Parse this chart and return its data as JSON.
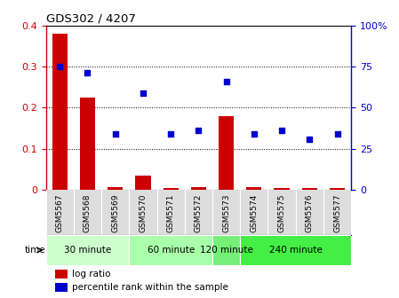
{
  "title": "GDS302 / 4207",
  "samples": [
    "GSM5567",
    "GSM5568",
    "GSM5569",
    "GSM5570",
    "GSM5571",
    "GSM5572",
    "GSM5573",
    "GSM5574",
    "GSM5575",
    "GSM5576",
    "GSM5577"
  ],
  "log_ratio": [
    0.38,
    0.225,
    0.008,
    0.035,
    0.005,
    0.008,
    0.18,
    0.008,
    0.006,
    0.006,
    0.005
  ],
  "percentile_right": [
    75,
    71,
    34,
    59,
    34,
    36,
    66,
    34,
    36,
    31,
    34
  ],
  "bar_color": "#cc0000",
  "dot_color": "#0000cc",
  "ylim_left": [
    0,
    0.4
  ],
  "ylim_right": [
    0,
    100
  ],
  "yticks_left": [
    0,
    0.1,
    0.2,
    0.3,
    0.4
  ],
  "yticks_right": [
    0,
    25,
    50,
    75,
    100
  ],
  "ytick_labels_left": [
    "0",
    "0.1",
    "0.2",
    "0.3",
    "0.4"
  ],
  "ytick_labels_right": [
    "0",
    "25",
    "50",
    "75",
    "100%"
  ],
  "groups": [
    {
      "label": "30 minute",
      "start": 0,
      "end": 3,
      "color": "#ccffcc"
    },
    {
      "label": "60 minute",
      "start": 3,
      "end": 6,
      "color": "#aaffaa"
    },
    {
      "label": "120 minute",
      "start": 6,
      "end": 7,
      "color": "#77ee77"
    },
    {
      "label": "240 minute",
      "start": 7,
      "end": 11,
      "color": "#44ee44"
    }
  ],
  "time_label": "time",
  "legend_log_ratio": "log ratio",
  "legend_percentile": "percentile rank within the sample",
  "background_color": "#ffffff",
  "left_axis_color": "#cc0000",
  "right_axis_color": "#0000cc",
  "plot_bg": "#ffffff",
  "xticklabel_bg": "#dddddd"
}
